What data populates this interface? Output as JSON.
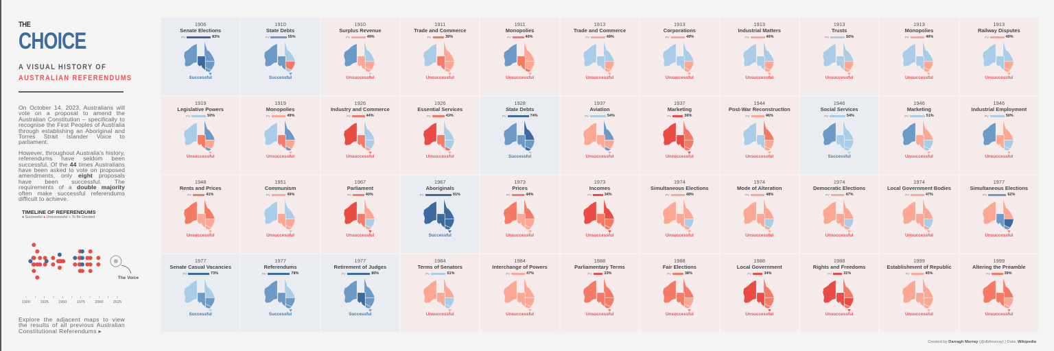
{
  "header": {
    "the": "THE",
    "choice": "CHOICE",
    "sub1": "A VISUAL HISTORY OF",
    "sub2": "AUSTRALIAN REFERENDUMS"
  },
  "intro": {
    "p1": "On October 14, 2023, Australians will vote on a proposal to amend the Australian Constitution – specifically to recognise the First Peoples of Australia through establishing an Aboriginal and Torres Strait Islander Voice to parliament.",
    "p2": [
      "However, throughout Australia's history, referendums have seldom been successful. Of the ",
      "44",
      " times Australians have been asked to vote on proposed amendments, only ",
      "eight",
      " proposals have been successful. The requirements of a ",
      "double majority",
      " often make successful referendums difficult to achieve."
    ]
  },
  "timeline": {
    "title": "TIMELINE OF REFERENDUMS",
    "legend": [
      "Successful",
      "Unsuccessful",
      "To Be Decided"
    ],
    "ticks": [
      "1900",
      "1925",
      "1950",
      "1975",
      "2000",
      "2025"
    ],
    "annotation": "The Voice",
    "voice_year": 2023
  },
  "explore": "Explore the adjacent maps to view the results of all previous Australian Constitutional Referendums ▸",
  "footer": {
    "prefix": "Created by ",
    "author": "Darragh Murray",
    "handle": " (@dbfmurray) | Data: ",
    "source": "Wikipedia"
  },
  "labels": {
    "pv": "PV",
    "successful": "Successful",
    "unsuccessful": "Unsuccessful"
  },
  "colors": {
    "b3": "#3d6a9e",
    "b2": "#6b9ac6",
    "b1": "#a9cde8",
    "r1": "#fba794",
    "r2": "#f47a66",
    "r3": "#e84c45",
    "success_text": "#4a76a8",
    "fail_text": "#e8525a",
    "tbd": "#bbb3ad"
  },
  "state_order": [
    "WA",
    "SA",
    "QLD",
    "NSW",
    "VIC",
    "TAS"
  ],
  "referendums": [
    {
      "year": "1906",
      "title": "Senate Elections",
      "pv": "83%",
      "result": "s",
      "states": [
        "b2",
        "b3",
        "b2",
        "b2",
        "b2",
        "b2"
      ]
    },
    {
      "year": "1910",
      "title": "State Debts",
      "pv": "55%",
      "result": "s",
      "states": [
        "b2",
        "b2",
        "b1",
        "r2",
        "b1",
        "b2"
      ]
    },
    {
      "year": "1910",
      "title": "Surplus Revenue",
      "pv": "49%",
      "result": "u",
      "states": [
        "b2",
        "r1",
        "b1",
        "r1",
        "r1",
        "b1"
      ]
    },
    {
      "year": "1911",
      "title": "Trade and Commerce",
      "pv": "39%",
      "result": "u",
      "states": [
        "b1",
        "r2",
        "r1",
        "r1",
        "r1",
        "r1"
      ]
    },
    {
      "year": "1911",
      "title": "Monopolies",
      "pv": "40%",
      "result": "u",
      "states": [
        "b2",
        "r2",
        "r1",
        "r1",
        "r2",
        "r1"
      ]
    },
    {
      "year": "1913",
      "title": "Trade and Commerce",
      "pv": "49%",
      "result": "u",
      "states": [
        "b1",
        "b1",
        "b1",
        "r1",
        "r1",
        "r1"
      ]
    },
    {
      "year": "1913",
      "title": "Corporations",
      "pv": "49%",
      "result": "u",
      "states": [
        "b1",
        "b1",
        "b1",
        "r1",
        "r1",
        "r1"
      ]
    },
    {
      "year": "1913",
      "title": "Industrial Matters",
      "pv": "49%",
      "result": "u",
      "states": [
        "b1",
        "b1",
        "b1",
        "r1",
        "r1",
        "r1"
      ]
    },
    {
      "year": "1913",
      "title": "Trusts",
      "pv": "50%",
      "result": "u",
      "states": [
        "b1",
        "b1",
        "b1",
        "r1",
        "r1",
        "r1"
      ]
    },
    {
      "year": "1913",
      "title": "Monopolies",
      "pv": "49%",
      "result": "u",
      "states": [
        "b1",
        "b1",
        "b1",
        "r1",
        "r1",
        "r1"
      ]
    },
    {
      "year": "1913",
      "title": "Railway Disputes",
      "pv": "49%",
      "result": "u",
      "states": [
        "b1",
        "b1",
        "b1",
        "r1",
        "r1",
        "r1"
      ]
    },
    {
      "year": "1919",
      "title": "Legislative Powers",
      "pv": "50%",
      "result": "u",
      "states": [
        "b1",
        "r2",
        "b2",
        "r1",
        "b2",
        "r1"
      ]
    },
    {
      "year": "1919",
      "title": "Monopolies",
      "pv": "49%",
      "result": "u",
      "states": [
        "b1",
        "r2",
        "b2",
        "r1",
        "b2",
        "r1"
      ]
    },
    {
      "year": "1926",
      "title": "Industry and Commerce",
      "pv": "44%",
      "result": "u",
      "states": [
        "r3",
        "r2",
        "b1",
        "b1",
        "r1",
        "r2"
      ]
    },
    {
      "year": "1926",
      "title": "Essential Services",
      "pv": "43%",
      "result": "u",
      "states": [
        "r3",
        "r2",
        "b1",
        "b1",
        "r2",
        "r1"
      ]
    },
    {
      "year": "1928",
      "title": "State Debts",
      "pv": "74%",
      "result": "s",
      "states": [
        "b2",
        "b2",
        "b3",
        "b2",
        "b3",
        "b1"
      ]
    },
    {
      "year": "1937",
      "title": "Aviation",
      "pv": "54%",
      "result": "u",
      "states": [
        "r1",
        "r1",
        "b2",
        "r1",
        "b2",
        "r1"
      ]
    },
    {
      "year": "1937",
      "title": "Marketing",
      "pv": "36%",
      "result": "u",
      "states": [
        "r3",
        "r3",
        "r2",
        "r2",
        "r2",
        "r3"
      ]
    },
    {
      "year": "1944",
      "title": "Post-War Reconstruction",
      "pv": "46%",
      "result": "u",
      "states": [
        "b1",
        "b1",
        "r2",
        "r1",
        "r1",
        "r1"
      ]
    },
    {
      "year": "1946",
      "title": "Social Services",
      "pv": "54%",
      "result": "s",
      "states": [
        "b2",
        "b1",
        "b1",
        "b1",
        "b1",
        "b1"
      ]
    },
    {
      "year": "1946",
      "title": "Marketing",
      "pv": "51%",
      "result": "u",
      "states": [
        "b2",
        "r1",
        "r1",
        "b1",
        "b1",
        "r1"
      ]
    },
    {
      "year": "1946",
      "title": "Industrial Employment",
      "pv": "50%",
      "result": "u",
      "states": [
        "b2",
        "r1",
        "r1",
        "b1",
        "b1",
        "r1"
      ]
    },
    {
      "year": "1948",
      "title": "Rents and Prices",
      "pv": "41%",
      "result": "u",
      "states": [
        "r2",
        "r1",
        "r2",
        "r1",
        "r1",
        "r1"
      ]
    },
    {
      "year": "1951",
      "title": "Communism",
      "pv": "49%",
      "result": "u",
      "states": [
        "b1",
        "r1",
        "b1",
        "r1",
        "r1",
        "b1"
      ]
    },
    {
      "year": "1967",
      "title": "Parliament",
      "pv": "40%",
      "result": "u",
      "states": [
        "r3",
        "r2",
        "r1",
        "b1",
        "r1",
        "r3"
      ]
    },
    {
      "year": "1967",
      "title": "Aboriginals",
      "pv": "91%",
      "result": "s",
      "states": [
        "b3",
        "b3",
        "b3",
        "b3",
        "b3",
        "b3"
      ]
    },
    {
      "year": "1973",
      "title": "Prices",
      "pv": "44%",
      "result": "u",
      "states": [
        "r2",
        "r1",
        "r2",
        "r1",
        "r1",
        "r1"
      ]
    },
    {
      "year": "1973",
      "title": "Incomes",
      "pv": "34%",
      "result": "u",
      "states": [
        "r3",
        "r2",
        "r3",
        "r2",
        "r2",
        "r3"
      ]
    },
    {
      "year": "1974",
      "title": "Simultaneous Elections",
      "pv": "48%",
      "result": "u",
      "states": [
        "r1",
        "r1",
        "r1",
        "b1",
        "r1",
        "r1"
      ]
    },
    {
      "year": "1974",
      "title": "Mode of Alteration",
      "pv": "48%",
      "result": "u",
      "states": [
        "r1",
        "r1",
        "r1",
        "b1",
        "r1",
        "r1"
      ]
    },
    {
      "year": "1974",
      "title": "Democratic Elections",
      "pv": "47%",
      "result": "u",
      "states": [
        "r1",
        "r1",
        "r1",
        "b1",
        "r1",
        "r1"
      ]
    },
    {
      "year": "1974",
      "title": "Local Government Bodies",
      "pv": "47%",
      "result": "u",
      "states": [
        "r1",
        "r1",
        "r1",
        "b1",
        "r1",
        "r1"
      ]
    },
    {
      "year": "1977",
      "title": "Simultaneous Elections",
      "pv": "62%",
      "result": "u",
      "states": [
        "r1",
        "b2",
        "r1",
        "b3",
        "b2",
        "r2"
      ]
    },
    {
      "year": "1977",
      "title": "Senate Casual Vacancies",
      "pv": "73%",
      "result": "s",
      "states": [
        "b1",
        "b2",
        "b1",
        "b2",
        "b2",
        "b1"
      ]
    },
    {
      "year": "1977",
      "title": "Referendums",
      "pv": "78%",
      "result": "s",
      "states": [
        "b2",
        "b2",
        "b1",
        "b2",
        "b2",
        "b2"
      ]
    },
    {
      "year": "1977",
      "title": "Retirement of Judges",
      "pv": "80%",
      "result": "s",
      "states": [
        "b2",
        "b3",
        "b2",
        "b2",
        "b2",
        "b2"
      ]
    },
    {
      "year": "1984",
      "title": "Terms of Senators",
      "pv": "51%",
      "result": "u",
      "states": [
        "r1",
        "r1",
        "r1",
        "b1",
        "b1",
        "r1"
      ]
    },
    {
      "year": "1984",
      "title": "Interchange of Powers",
      "pv": "47%",
      "result": "u",
      "states": [
        "r1",
        "r1",
        "r1",
        "r1",
        "r1",
        "r1"
      ]
    },
    {
      "year": "1988",
      "title": "Parliamentary Terms",
      "pv": "33%",
      "result": "u",
      "states": [
        "r2",
        "r2",
        "r2",
        "r2",
        "r2",
        "r2"
      ]
    },
    {
      "year": "1988",
      "title": "Fair Elections",
      "pv": "38%",
      "result": "u",
      "states": [
        "r2",
        "r2",
        "r2",
        "r1",
        "r1",
        "r2"
      ]
    },
    {
      "year": "1988",
      "title": "Local Government",
      "pv": "34%",
      "result": "u",
      "states": [
        "r3",
        "r3",
        "r2",
        "r2",
        "r2",
        "r3"
      ]
    },
    {
      "year": "1988",
      "title": "Rights and Freedoms",
      "pv": "31%",
      "result": "u",
      "states": [
        "r3",
        "r3",
        "r2",
        "r3",
        "r2",
        "r3"
      ]
    },
    {
      "year": "1999",
      "title": "Establishment of Republic",
      "pv": "45%",
      "result": "u",
      "states": [
        "r1",
        "r1",
        "r1",
        "r1",
        "r1",
        "r1"
      ]
    },
    {
      "year": "1999",
      "title": "Altering the Preamble",
      "pv": "39%",
      "result": "u",
      "states": [
        "r2",
        "r2",
        "r2",
        "r1",
        "r1",
        "r2"
      ]
    }
  ]
}
